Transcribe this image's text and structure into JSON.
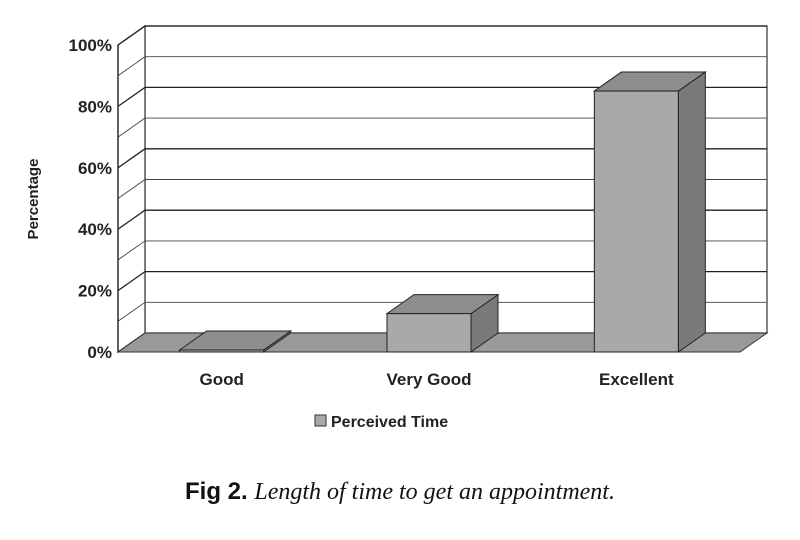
{
  "chart_data": {
    "type": "bar",
    "categories": [
      "Good",
      "Very Good",
      "Excellent"
    ],
    "series": [
      {
        "name": "Perceived Time",
        "values": [
          0.5,
          12.5,
          85
        ]
      }
    ],
    "ylabel": "Percentage",
    "ylim": [
      0,
      100
    ],
    "yticks": [
      "0%",
      "20%",
      "40%",
      "60%",
      "80%",
      "100%"
    ],
    "grid": true,
    "legend": "bottom",
    "colors": {
      "bar_front": "#a9a9a9",
      "bar_top": "#8e8e8e",
      "bar_side": "#7a7a7a",
      "floor": "#999999"
    }
  },
  "caption": {
    "fig": "Fig 2.",
    "text": "Length of time to get an appointment."
  }
}
